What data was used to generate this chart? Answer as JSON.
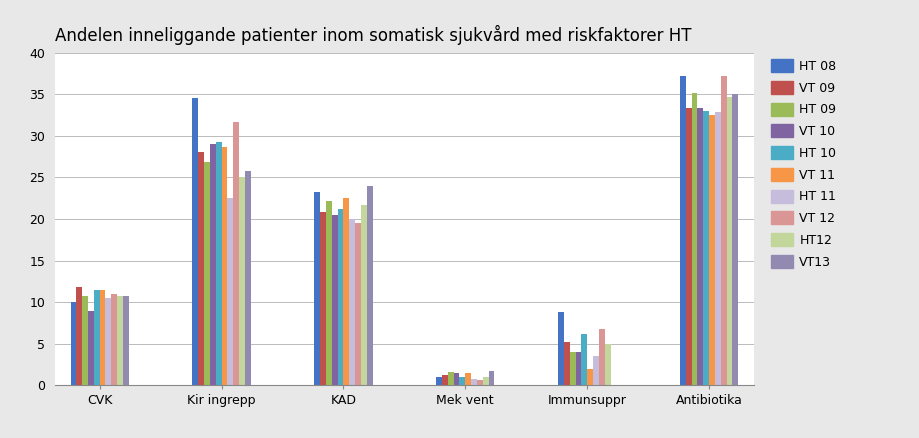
{
  "title": "Andelen inneliggande patienter inom somatisk sjukvård med riskfaktorer HT",
  "categories": [
    "CVK",
    "Kir ingrepp",
    "KAD",
    "Mek vent",
    "Immunsuppr",
    "Antibiotika"
  ],
  "series_labels": [
    "HT 08",
    "VT 09",
    "HT 09",
    "VT 10",
    "HT 10",
    "VT 11",
    "HT 11",
    "VT 12",
    "HT12",
    "VT13"
  ],
  "colors": [
    "#4472C4",
    "#C0504D",
    "#9BBB59",
    "#8064A2",
    "#4BACC6",
    "#F79646",
    "#C6BCDB",
    "#D99694",
    "#C3D69B",
    "#938AB1"
  ],
  "data": {
    "CVK": [
      10.0,
      11.8,
      10.8,
      9.0,
      11.5,
      11.5,
      10.5,
      11.0,
      10.7,
      10.7
    ],
    "Kir ingrepp": [
      34.5,
      28.0,
      26.8,
      29.0,
      29.2,
      28.6,
      22.5,
      31.7,
      25.0,
      25.8
    ],
    "KAD": [
      23.2,
      20.8,
      22.2,
      20.5,
      21.2,
      22.5,
      20.0,
      19.5,
      21.7,
      24.0
    ],
    "Mek vent": [
      1.0,
      1.2,
      1.6,
      1.5,
      1.0,
      1.5,
      0.8,
      0.6,
      1.0,
      1.7
    ],
    "Immunsuppr": [
      8.8,
      5.2,
      4.0,
      4.0,
      6.2,
      2.0,
      3.5,
      6.8,
      5.0,
      0.0
    ],
    "Antibiotika": [
      37.2,
      33.3,
      35.2,
      33.3,
      33.0,
      32.5,
      32.8,
      37.2,
      34.7,
      35.0
    ]
  },
  "ylim": [
    0,
    40
  ],
  "yticks": [
    0,
    5,
    10,
    15,
    20,
    25,
    30,
    35,
    40
  ],
  "fig_background": "#E8E8E8",
  "plot_background": "#FFFFFF",
  "grid_color": "#BBBBBB",
  "title_fontsize": 12,
  "tick_fontsize": 9,
  "legend_fontsize": 9
}
